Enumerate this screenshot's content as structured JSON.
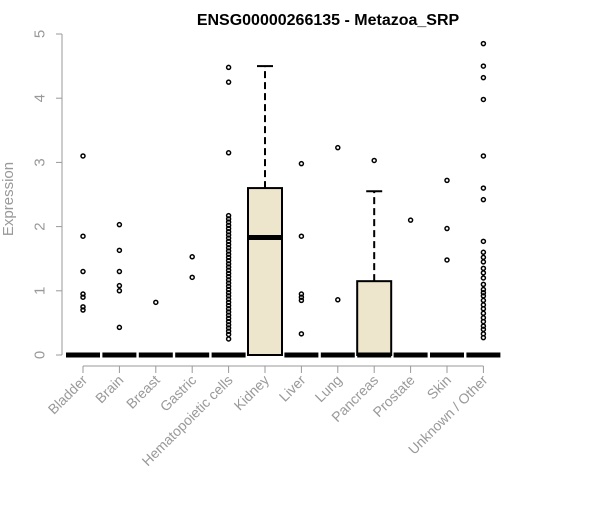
{
  "chart_data": {
    "type": "boxplot",
    "title": "ENSG00000266135 - Metazoa_SRP",
    "xlabel": "",
    "ylabel": "Expression",
    "ylim": [
      0,
      5
    ],
    "yticks": [
      0,
      1,
      2,
      3,
      4,
      5
    ],
    "grid": false,
    "legend": "none",
    "colors": {
      "box_fill": "#ede6cc",
      "stroke": "#000000",
      "axis_text": "#999999"
    },
    "categories": [
      "Bladder",
      "Brain",
      "Breast",
      "Gastric",
      "Hematopoietic cells",
      "Kidney",
      "Liver",
      "Lung",
      "Pancreas",
      "Prostate",
      "Skin",
      "Unknown / Other"
    ],
    "boxes": [
      {
        "category": "Bladder",
        "min": 0,
        "q1": 0,
        "median": 0,
        "q3": 0,
        "max": 0,
        "outliers": [
          3.1,
          1.85,
          1.3,
          0.95,
          0.9,
          0.75,
          0.7
        ]
      },
      {
        "category": "Brain",
        "min": 0,
        "q1": 0,
        "median": 0,
        "q3": 0,
        "max": 0,
        "outliers": [
          2.03,
          1.63,
          1.3,
          1.08,
          1.0,
          0.43
        ]
      },
      {
        "category": "Breast",
        "min": 0,
        "q1": 0,
        "median": 0,
        "q3": 0,
        "max": 0,
        "outliers": [
          0.82
        ]
      },
      {
        "category": "Gastric",
        "min": 0,
        "q1": 0,
        "median": 0,
        "q3": 0,
        "max": 0,
        "outliers": [
          1.53,
          1.21
        ]
      },
      {
        "category": "Hematopoietic cells",
        "min": 0,
        "q1": 0,
        "median": 0,
        "q3": 0,
        "max": 0,
        "outliers": [
          4.48,
          4.25,
          3.15,
          2.17,
          2.12,
          2.07,
          2.02,
          1.97,
          1.92,
          1.87,
          1.82,
          1.77,
          1.72,
          1.67,
          1.62,
          1.57,
          1.52,
          1.47,
          1.42,
          1.37,
          1.32,
          1.27,
          1.22,
          1.17,
          1.12,
          1.07,
          1.02,
          0.97,
          0.92,
          0.87,
          0.82,
          0.77,
          0.72,
          0.67,
          0.62,
          0.57,
          0.52,
          0.47,
          0.42,
          0.37,
          0.32,
          0.25
        ]
      },
      {
        "category": "Kidney",
        "min": 0,
        "q1": 0,
        "median": 1.83,
        "q3": 2.6,
        "max": 4.5,
        "outliers": []
      },
      {
        "category": "Liver",
        "min": 0,
        "q1": 0,
        "median": 0,
        "q3": 0,
        "max": 0,
        "outliers": [
          2.98,
          1.85,
          0.95,
          0.9,
          0.85,
          0.33
        ]
      },
      {
        "category": "Lung",
        "min": 0,
        "q1": 0,
        "median": 0,
        "q3": 0,
        "max": 0,
        "outliers": [
          3.23,
          0.86
        ]
      },
      {
        "category": "Pancreas",
        "min": 0,
        "q1": 0,
        "median": 0,
        "q3": 1.15,
        "max": 2.55,
        "outliers": [
          3.03
        ]
      },
      {
        "category": "Prostate",
        "min": 0,
        "q1": 0,
        "median": 0,
        "q3": 0,
        "max": 0,
        "outliers": [
          2.1
        ]
      },
      {
        "category": "Skin",
        "min": 0,
        "q1": 0,
        "median": 0,
        "q3": 0,
        "max": 0,
        "outliers": [
          2.72,
          1.97,
          1.48
        ]
      },
      {
        "category": "Unknown / Other",
        "min": 0,
        "q1": 0,
        "median": 0,
        "q3": 0,
        "max": 0,
        "outliers": [
          4.85,
          4.5,
          4.32,
          3.98,
          3.1,
          2.6,
          2.42,
          1.77,
          1.6,
          1.52,
          1.45,
          1.35,
          1.28,
          1.2,
          1.1,
          1.02,
          0.97,
          0.92,
          0.85,
          0.78,
          0.72,
          0.65,
          0.58,
          0.52,
          0.45,
          0.4,
          0.33,
          0.27
        ]
      }
    ]
  }
}
